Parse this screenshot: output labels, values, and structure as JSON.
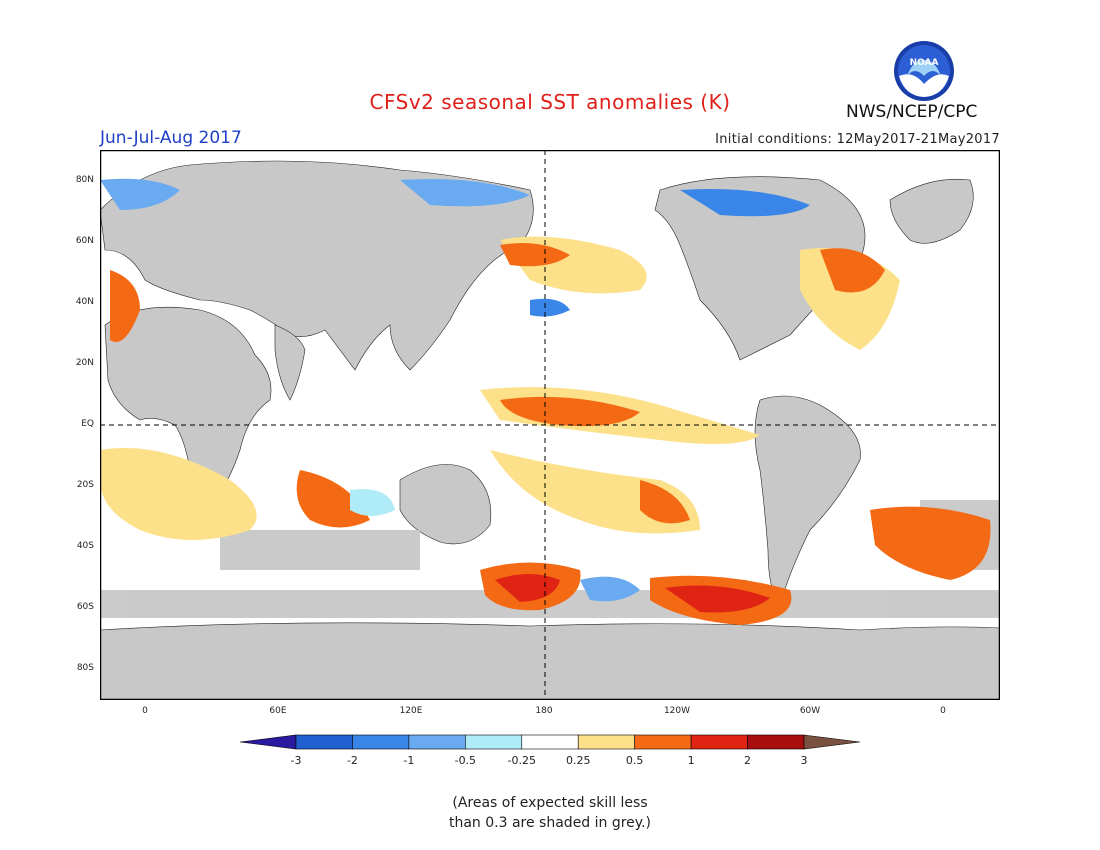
{
  "header": {
    "title": "CFSv2 seasonal SST anomalies (K)",
    "season": "Jun-Jul-Aug 2017",
    "initial_conditions": "Initial conditions: 12May2017-21May2017",
    "agency": "NWS/NCEP/CPC",
    "logo_text": "NOAA"
  },
  "map": {
    "lat_labels": [
      "80N",
      "60N",
      "40N",
      "20N",
      "EQ",
      "20S",
      "40S",
      "60S",
      "80S"
    ],
    "lon_labels": [
      "0",
      "60E",
      "120E",
      "180",
      "120W",
      "60W",
      "0"
    ],
    "land_color": "#c8c8c8",
    "grey_mask_color": "#c8c8c8",
    "dashed_reference_lines": [
      "EQ",
      "180"
    ]
  },
  "legend": {
    "tick_labels": [
      "-3",
      "-2",
      "-1",
      "-0.5",
      "-0.25",
      "0.25",
      "0.5",
      "1",
      "2",
      "3"
    ],
    "colors": [
      "#2a1aa0",
      "#1f5fd0",
      "#3a85e8",
      "#6aaaf0",
      "#b0ecf8",
      "#ffffff",
      "#fde08a",
      "#f46a14",
      "#e02414",
      "#a80e0e",
      "#7a5040"
    ]
  },
  "note": {
    "line1": "(Areas of expected skill less",
    "line2": "than 0.3 are shaded in grey.)"
  }
}
